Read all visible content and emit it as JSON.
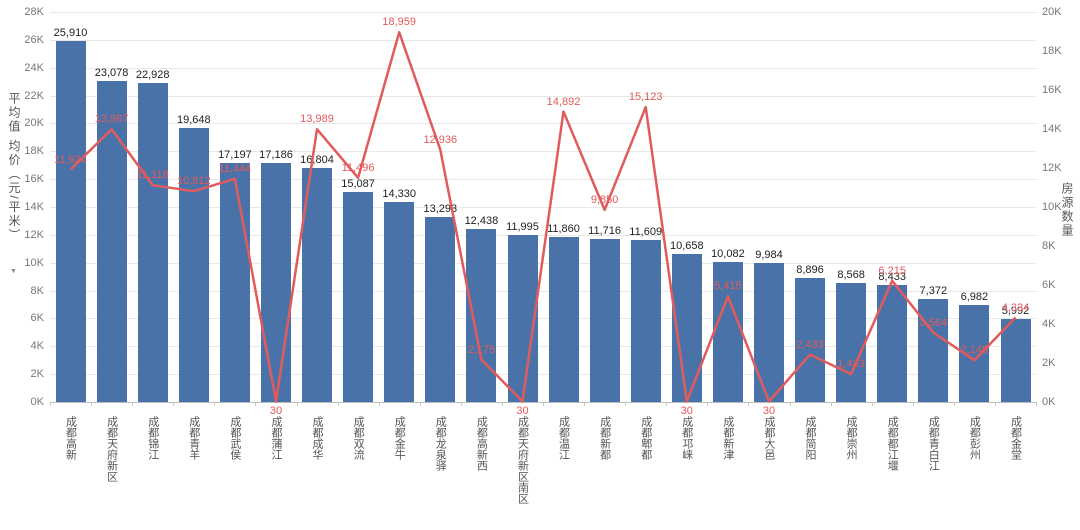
{
  "chart_data": {
    "type": "bar",
    "subtype": "combo-bar-line",
    "title": "",
    "ylabel_left": "平均值 均价（元/平米）",
    "ylabel_right": "房源数量",
    "ylim_left": [
      0,
      28000
    ],
    "ylim_right": [
      0,
      20000
    ],
    "left_ticks": [
      "0K",
      "2K",
      "4K",
      "6K",
      "8K",
      "10K",
      "12K",
      "14K",
      "16K",
      "18K",
      "20K",
      "22K",
      "24K",
      "26K",
      "28K"
    ],
    "right_ticks": [
      "0K",
      "2K",
      "4K",
      "6K",
      "8K",
      "10K",
      "12K",
      "14K",
      "16K",
      "18K",
      "20K"
    ],
    "grid": true,
    "legend_position": "none",
    "categories": [
      "成都高新",
      "成都天府新区",
      "成都锦江",
      "成都青羊",
      "成都武侯",
      "成都蒲江",
      "成都成华",
      "成都双流",
      "成都金牛",
      "成都龙泉驿",
      "成都高新西",
      "成都天府新区南区",
      "成都温江",
      "成都新都",
      "成都郫都",
      "成都邛崃",
      "成都新津",
      "成都大邑",
      "成都简阳",
      "成都崇州",
      "成都都江堰",
      "成都青白江",
      "成都彭州",
      "成都金堂"
    ],
    "series": [
      {
        "name": "平均值 均价",
        "type": "bar",
        "axis": "left",
        "color": "#4973A8",
        "label_color": "#222222",
        "values": [
          25910,
          23078,
          22928,
          19648,
          17197,
          17186,
          16804,
          15087,
          14330,
          13293,
          12438,
          11995,
          11860,
          11716,
          11609,
          10658,
          10082,
          9984,
          8896,
          8568,
          8433,
          7372,
          6982,
          5992
        ]
      },
      {
        "name": "房源数量",
        "type": "line",
        "axis": "right",
        "color": "#E25B5C",
        "label_color": "#E05A5C",
        "values": [
          11924,
          13987,
          11118,
          10812,
          11444,
          30,
          13989,
          11496,
          18959,
          12936,
          2175,
          30,
          14892,
          9850,
          15123,
          30,
          5415,
          30,
          2433,
          1433,
          6215,
          3564,
          2145,
          4334
        ]
      }
    ],
    "sort_icon": "▼"
  }
}
